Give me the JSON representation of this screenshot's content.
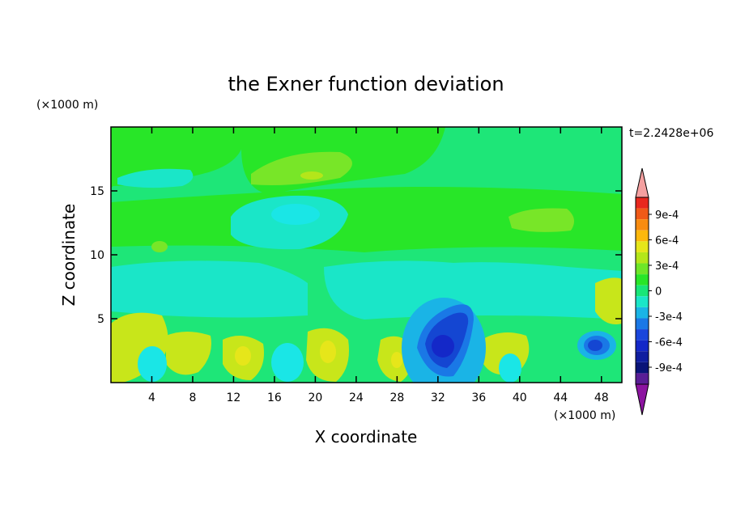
{
  "chart_data": {
    "type": "heatmap",
    "title": "the Exner function deviation",
    "xlabel": "X coordinate",
    "ylabel": "Z coordinate",
    "x_unit": "(×1000 m)",
    "y_unit": "(×1000 m)",
    "time_label": "t=2.2428e+06",
    "xlim": [
      0,
      50
    ],
    "ylim": [
      0,
      20
    ],
    "x_ticks": [
      4,
      8,
      12,
      16,
      20,
      24,
      28,
      32,
      36,
      40,
      44,
      48
    ],
    "y_ticks": [
      5,
      10,
      15
    ],
    "colorbar": {
      "labels": [
        "9e-4",
        "6e-4",
        "3e-4",
        "0",
        "-3e-4",
        "-6e-4",
        "-9e-4"
      ],
      "label_values": [
        0.0009,
        0.0006,
        0.0003,
        0,
        -0.0003,
        -0.0006,
        -0.0009
      ],
      "range": [
        -0.0011,
        0.0011
      ],
      "colors_top_to_bottom": [
        "#e8281e",
        "#f05a18",
        "#f88c10",
        "#fcb80c",
        "#e6e61a",
        "#b4e61a",
        "#6ee628",
        "#28e628",
        "#18e678",
        "#1ae6c8",
        "#1ab4e6",
        "#1a78e6",
        "#1a46dc",
        "#1428c8",
        "#101ea0",
        "#0a1478",
        "#5a1e96"
      ],
      "over_color": "#f4a0a0",
      "under_color": "#8c14a0"
    },
    "series": [
      {
        "name": "background",
        "level": 0,
        "color": "#1ee678"
      },
      {
        "name": "upper band",
        "level": 5e-05,
        "color": "#28e628"
      },
      {
        "name": "upper positive patch",
        "level": 0.00015,
        "color": "#78e628"
      },
      {
        "name": "upper negative patch",
        "level": -0.0001,
        "color": "#1ae6c8"
      },
      {
        "name": "lower positive blobs",
        "level": 0.0002,
        "color": "#c8e61a"
      },
      {
        "name": "lower negative blobs",
        "level": -0.0002,
        "color": "#1ae6e6"
      },
      {
        "name": "strong low at x=32",
        "level": -0.0007,
        "color": "#1446d2"
      },
      {
        "name": "strong low at x=47",
        "level": -0.0007,
        "color": "#1446d2"
      }
    ]
  }
}
